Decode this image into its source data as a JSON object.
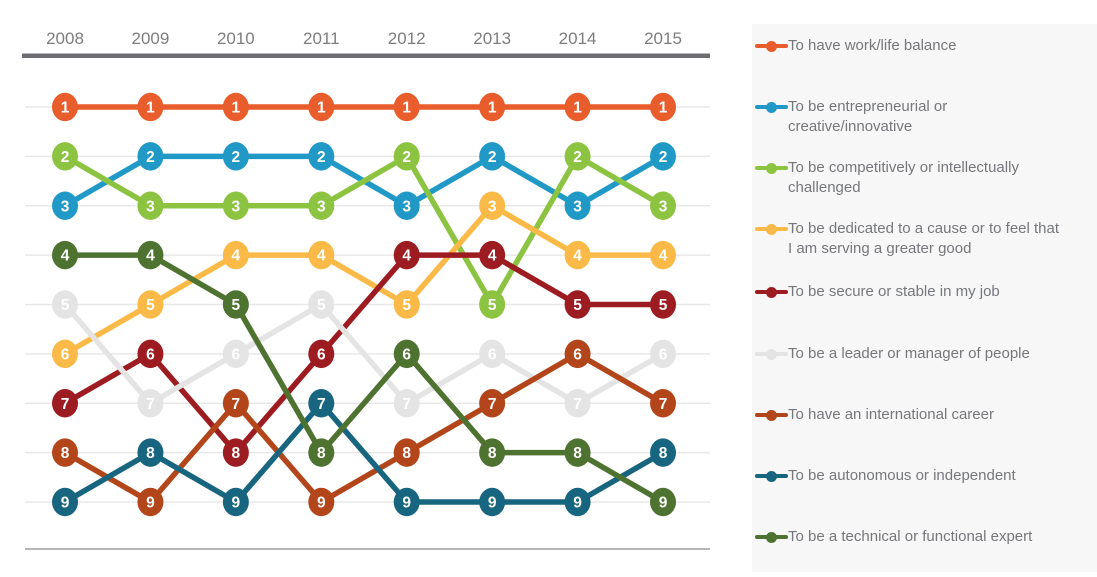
{
  "chart_data": {
    "type": "line",
    "subtype": "bump-ranking",
    "title": "",
    "x": [
      "2008",
      "2009",
      "2010",
      "2011",
      "2012",
      "2013",
      "2014",
      "2015"
    ],
    "y_meaning": "rank (1 = top priority, 9 = lowest)",
    "ylim": [
      1,
      9
    ],
    "grid": true,
    "legend_position": "right",
    "marker_text_color": "#FFFFFF",
    "axis": {
      "tick_color": "#7D7D7D",
      "top_rule_color": "#6D6E71",
      "bottom_rule_color": "#B5B5B5",
      "grid_color": "#E8E8E8"
    },
    "series": [
      {
        "name": "To have work/life balance",
        "color": "#E85D2B",
        "values": [
          1,
          1,
          1,
          1,
          1,
          1,
          1,
          1
        ]
      },
      {
        "name": "To be entrepreneurial or creative/innovative",
        "color": "#2099C7",
        "values": [
          3,
          2,
          2,
          2,
          3,
          2,
          3,
          2
        ]
      },
      {
        "name": "To be competitively or intellectually challenged",
        "color": "#8CC441",
        "values": [
          2,
          3,
          3,
          3,
          2,
          5,
          2,
          3
        ]
      },
      {
        "name": "To be dedicated to a cause or to feel that I am serving a greater good",
        "color": "#FBBA47",
        "values": [
          6,
          5,
          4,
          4,
          5,
          3,
          4,
          4
        ]
      },
      {
        "name": "To be secure or stable in my job",
        "color": "#9D1C21",
        "values": [
          7,
          6,
          8,
          6,
          4,
          4,
          5,
          5
        ]
      },
      {
        "name": "To be a leader or manager of people",
        "color": "#E4E4E4",
        "values": [
          5,
          7,
          6,
          5,
          7,
          6,
          7,
          6
        ]
      },
      {
        "name": "To have an international career",
        "color": "#B2451A",
        "values": [
          8,
          9,
          7,
          9,
          8,
          7,
          6,
          7
        ]
      },
      {
        "name": "To be autonomous or independent",
        "color": "#17657F",
        "values": [
          9,
          8,
          9,
          7,
          9,
          9,
          9,
          8
        ]
      },
      {
        "name": "To be a technical or functional expert",
        "color": "#4E7230",
        "values": [
          4,
          4,
          5,
          8,
          6,
          8,
          8,
          9
        ]
      }
    ]
  },
  "legend": {
    "background": "#F7F7F7",
    "text_color": "#76777B",
    "items": [
      {
        "label": "To have work/life balance"
      },
      {
        "label": "To be entrepreneurial or\ncreative/innovative"
      },
      {
        "label": "To be competitively or intellectually\nchallenged"
      },
      {
        "label": "To be dedicated to a cause or to feel that\nI am serving a greater good"
      },
      {
        "label": "To be secure or stable in my job"
      },
      {
        "label": "To be a leader or manager of people"
      },
      {
        "label": "To have an international career"
      },
      {
        "label": "To be autonomous or independent"
      },
      {
        "label": "To be a technical or functional expert"
      }
    ]
  }
}
